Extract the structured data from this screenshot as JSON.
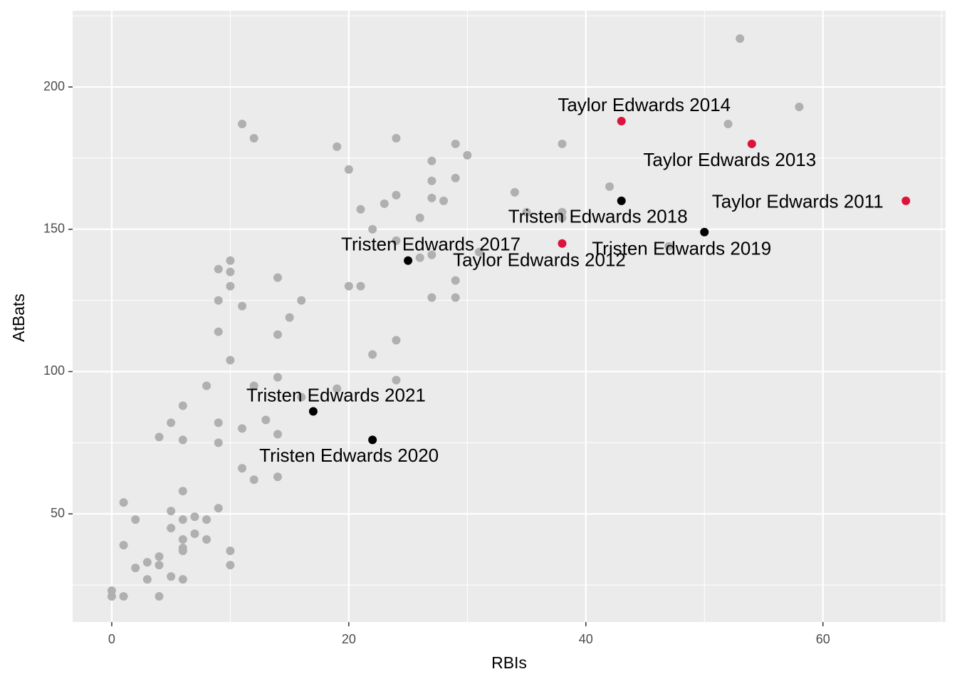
{
  "chart_data": {
    "type": "scatter",
    "x_label": "RBIs",
    "y_label": "AtBats",
    "xlim": [
      -3.3,
      70.35
    ],
    "ylim": [
      12,
      226.8
    ],
    "xticks": [
      0,
      20,
      40,
      60
    ],
    "yticks": [
      50,
      100,
      150,
      200
    ],
    "minor_xticks": [
      10,
      30,
      50,
      70
    ],
    "minor_yticks": [
      25,
      75,
      125,
      175,
      225
    ],
    "grid": true,
    "series": [
      {
        "color": "#b0b0b0",
        "x": [
          53,
          58,
          52,
          11,
          12,
          24,
          29,
          38,
          19,
          30,
          27,
          20,
          29,
          27,
          42,
          34,
          24,
          27,
          28,
          23,
          21,
          35,
          38,
          26,
          38,
          22,
          24,
          31,
          27,
          26,
          47,
          10,
          9,
          10,
          14,
          29,
          20,
          21,
          10,
          27,
          29,
          9,
          16,
          11,
          15,
          9,
          14,
          24,
          22,
          10,
          14,
          24,
          8,
          12,
          19,
          16,
          6,
          13,
          5,
          9,
          11,
          14,
          4,
          6,
          9,
          11,
          14,
          12,
          6,
          1,
          9,
          5,
          7,
          2,
          6,
          8,
          5,
          7,
          6,
          8,
          1,
          6,
          6,
          10,
          4,
          3,
          4,
          10,
          2,
          5,
          3,
          6,
          0,
          0,
          1,
          4
        ],
        "y": [
          217,
          193,
          187,
          187,
          182,
          182,
          180,
          180,
          179,
          176,
          174,
          171,
          168,
          167,
          165,
          163,
          162,
          161,
          160,
          159,
          157,
          156,
          156,
          154,
          154,
          150,
          146,
          142,
          141,
          140,
          144,
          139,
          136,
          135,
          133,
          132,
          130,
          130,
          130,
          126,
          126,
          125,
          125,
          123,
          119,
          114,
          113,
          111,
          106,
          104,
          98,
          97,
          95,
          95,
          94,
          91,
          88,
          83,
          82,
          82,
          80,
          78,
          77,
          76,
          75,
          66,
          63,
          62,
          58,
          54,
          52,
          51,
          49,
          48,
          48,
          48,
          45,
          43,
          41,
          41,
          39,
          38,
          37,
          37,
          35,
          33,
          32,
          32,
          31,
          28,
          27,
          27,
          23,
          21,
          21,
          21
        ]
      },
      {
        "color": "#dc143c",
        "x": [
          67,
          38,
          54,
          43
        ],
        "y": [
          160,
          145,
          180,
          188
        ],
        "labels": [
          "Taylor Edwards 2011",
          "Taylor Edwards 2012",
          "Taylor Edwards 2013",
          "Taylor Edwards 2014"
        ]
      },
      {
        "color": "#000000",
        "x": [
          25,
          43,
          50,
          22,
          17
        ],
        "y": [
          139,
          160,
          149,
          76,
          86
        ],
        "labels": [
          "Tristen Edwards 2017",
          "Tristen Edwards 2018",
          "Tristen Edwards 2019",
          "Tristen Edwards 2020",
          "Tristen Edwards 2021"
        ]
      }
    ]
  }
}
